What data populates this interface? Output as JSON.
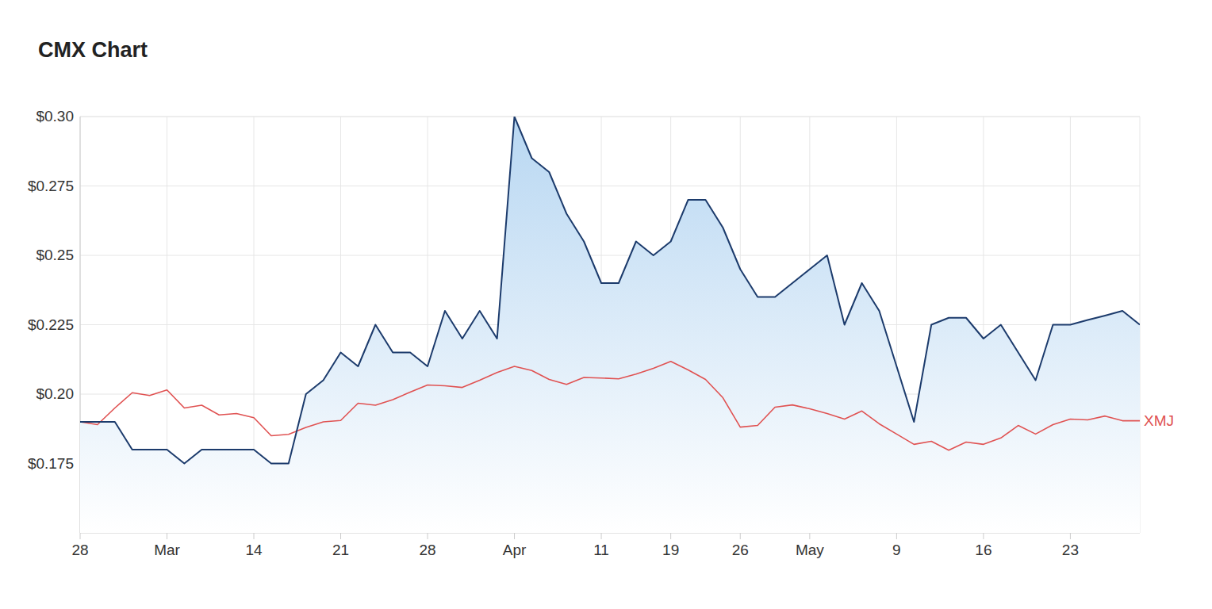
{
  "chart_data": {
    "type": "line",
    "title": "CMX Chart",
    "categories": [
      "28",
      null,
      null,
      null,
      null,
      "Mar",
      null,
      null,
      null,
      null,
      "14",
      null,
      null,
      null,
      null,
      "21",
      null,
      null,
      null,
      null,
      "28",
      null,
      null,
      null,
      null,
      "Apr",
      null,
      null,
      null,
      null,
      "11",
      null,
      null,
      null,
      "19",
      null,
      null,
      null,
      "26",
      null,
      null,
      null,
      "May",
      null,
      null,
      null,
      null,
      "9",
      null,
      null,
      null,
      null,
      "16",
      null,
      null,
      null,
      null,
      "23",
      null,
      null,
      null,
      null
    ],
    "series": [
      {
        "type": "area",
        "color": "#1c3b6c",
        "values": [
          0.19,
          0.19,
          0.19,
          0.18,
          0.18,
          0.18,
          0.175,
          0.18,
          0.18,
          0.18,
          0.18,
          0.175,
          0.175,
          0.2,
          0.205,
          0.215,
          0.21,
          0.225,
          0.215,
          0.215,
          0.21,
          0.23,
          0.22,
          0.23,
          0.22,
          0.3,
          0.285,
          0.28,
          0.265,
          0.255,
          0.24,
          0.24,
          0.255,
          0.25,
          0.255,
          0.27,
          0.27,
          0.26,
          0.245,
          0.235,
          0.235,
          0.24,
          0.245,
          0.25,
          0.225,
          0.24,
          0.23,
          0.21,
          0.19,
          0.225,
          0.2275,
          0.2275,
          0.22,
          0.225,
          0.215,
          0.205,
          0.225,
          0.225,
          0.2267,
          0.2283,
          0.23,
          0.225
        ]
      },
      {
        "name": "XMJ",
        "type": "line",
        "color": "#e05252",
        "values": [
          0.19,
          0.189,
          0.195,
          0.2005,
          0.1995,
          0.2015,
          0.195,
          0.196,
          0.1925,
          0.193,
          0.1915,
          0.185,
          0.1855,
          0.188,
          0.19,
          0.1905,
          0.1967,
          0.196,
          0.198,
          0.2007,
          0.2033,
          0.203,
          0.2024,
          0.205,
          0.2078,
          0.21,
          0.2085,
          0.2053,
          0.2035,
          0.206,
          0.2058,
          0.2055,
          0.2072,
          0.2093,
          0.2118,
          0.2087,
          0.2053,
          0.1987,
          0.1881,
          0.1887,
          0.1953,
          0.1961,
          0.1947,
          0.193,
          0.191,
          0.1939,
          0.1893,
          0.1856,
          0.1819,
          0.183,
          0.1798,
          0.1827,
          0.1819,
          0.1842,
          0.1887,
          0.1856,
          0.189,
          0.191,
          0.1907,
          0.1921,
          0.1904,
          0.1904
        ]
      }
    ],
    "ylim": [
      0.15,
      0.3
    ],
    "yticks": [
      {
        "value": 0.175,
        "label": "$0.175"
      },
      {
        "value": 0.2,
        "label": "$0.20"
      },
      {
        "value": 0.225,
        "label": "$0.225"
      },
      {
        "value": 0.25,
        "label": "$0.25"
      },
      {
        "value": 0.275,
        "label": "$0.275"
      },
      {
        "value": 0.3,
        "label": "$0.30"
      }
    ],
    "grid": true
  }
}
